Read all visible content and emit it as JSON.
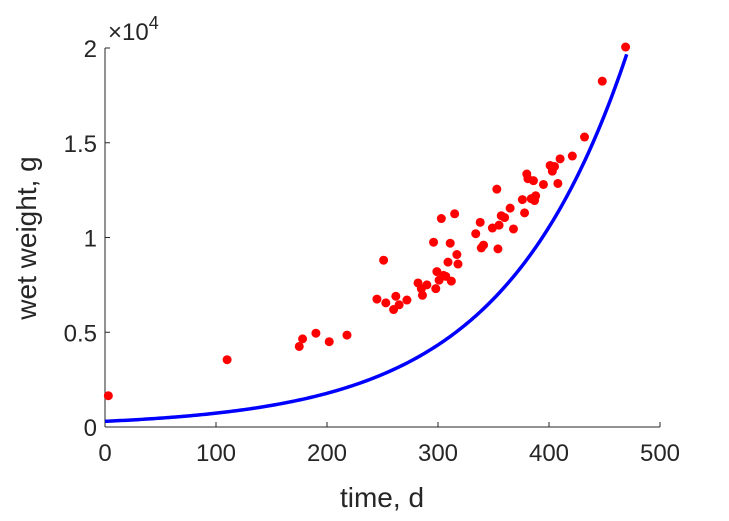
{
  "chart_data": {
    "type": "scatter",
    "title": "",
    "xlabel": "time, d",
    "ylabel": "wet weight, g",
    "xlim": [
      0,
      500
    ],
    "ylim": [
      0,
      20000
    ],
    "x_ticks": [
      0,
      100,
      200,
      300,
      400,
      500
    ],
    "y_ticks": [
      0,
      5000,
      10000,
      15000,
      20000
    ],
    "y_tick_labels": [
      "0",
      "0.5",
      "1",
      "1.5",
      "2"
    ],
    "y_exponent_base": "×10",
    "y_exponent_power": "4",
    "grid": false,
    "legend": "none",
    "series": [
      {
        "type": "scatter",
        "color": "#ff0000",
        "points": [
          [
            3,
            1650
          ],
          [
            110,
            3550
          ],
          [
            175,
            4250
          ],
          [
            178,
            4650
          ],
          [
            190,
            4950
          ],
          [
            202,
            4500
          ],
          [
            218,
            4850
          ],
          [
            245,
            6750
          ],
          [
            251,
            8800
          ],
          [
            253,
            6550
          ],
          [
            260,
            6200
          ],
          [
            262,
            6900
          ],
          [
            265,
            6450
          ],
          [
            272,
            6700
          ],
          [
            282,
            7600
          ],
          [
            285,
            7300
          ],
          [
            286,
            6950
          ],
          [
            290,
            7500
          ],
          [
            296,
            9750
          ],
          [
            298,
            7300
          ],
          [
            299,
            8200
          ],
          [
            301,
            7750
          ],
          [
            303,
            11000
          ],
          [
            305,
            8000
          ],
          [
            307,
            7950
          ],
          [
            309,
            8700
          ],
          [
            311,
            9700
          ],
          [
            312,
            7700
          ],
          [
            315,
            11250
          ],
          [
            317,
            9100
          ],
          [
            318,
            8600
          ],
          [
            334,
            10200
          ],
          [
            338,
            10800
          ],
          [
            339,
            9450
          ],
          [
            341,
            9600
          ],
          [
            349,
            10500
          ],
          [
            353,
            12550
          ],
          [
            354,
            9400
          ],
          [
            355,
            10650
          ],
          [
            357,
            11150
          ],
          [
            360,
            11050
          ],
          [
            365,
            11550
          ],
          [
            368,
            10450
          ],
          [
            376,
            12000
          ],
          [
            378,
            11300
          ],
          [
            380,
            13350
          ],
          [
            381,
            13100
          ],
          [
            384,
            12050
          ],
          [
            386,
            13000
          ],
          [
            387,
            11950
          ],
          [
            388,
            12200
          ],
          [
            395,
            12800
          ],
          [
            401,
            13800
          ],
          [
            403,
            13500
          ],
          [
            405,
            13750
          ],
          [
            408,
            12850
          ],
          [
            410,
            14150
          ],
          [
            421,
            14300
          ],
          [
            432,
            15300
          ],
          [
            448,
            18250
          ],
          [
            469,
            20050
          ]
        ]
      },
      {
        "type": "line",
        "color": "#0000ff",
        "fit": {
          "a": 300,
          "b": 0.0089
        }
      }
    ]
  }
}
